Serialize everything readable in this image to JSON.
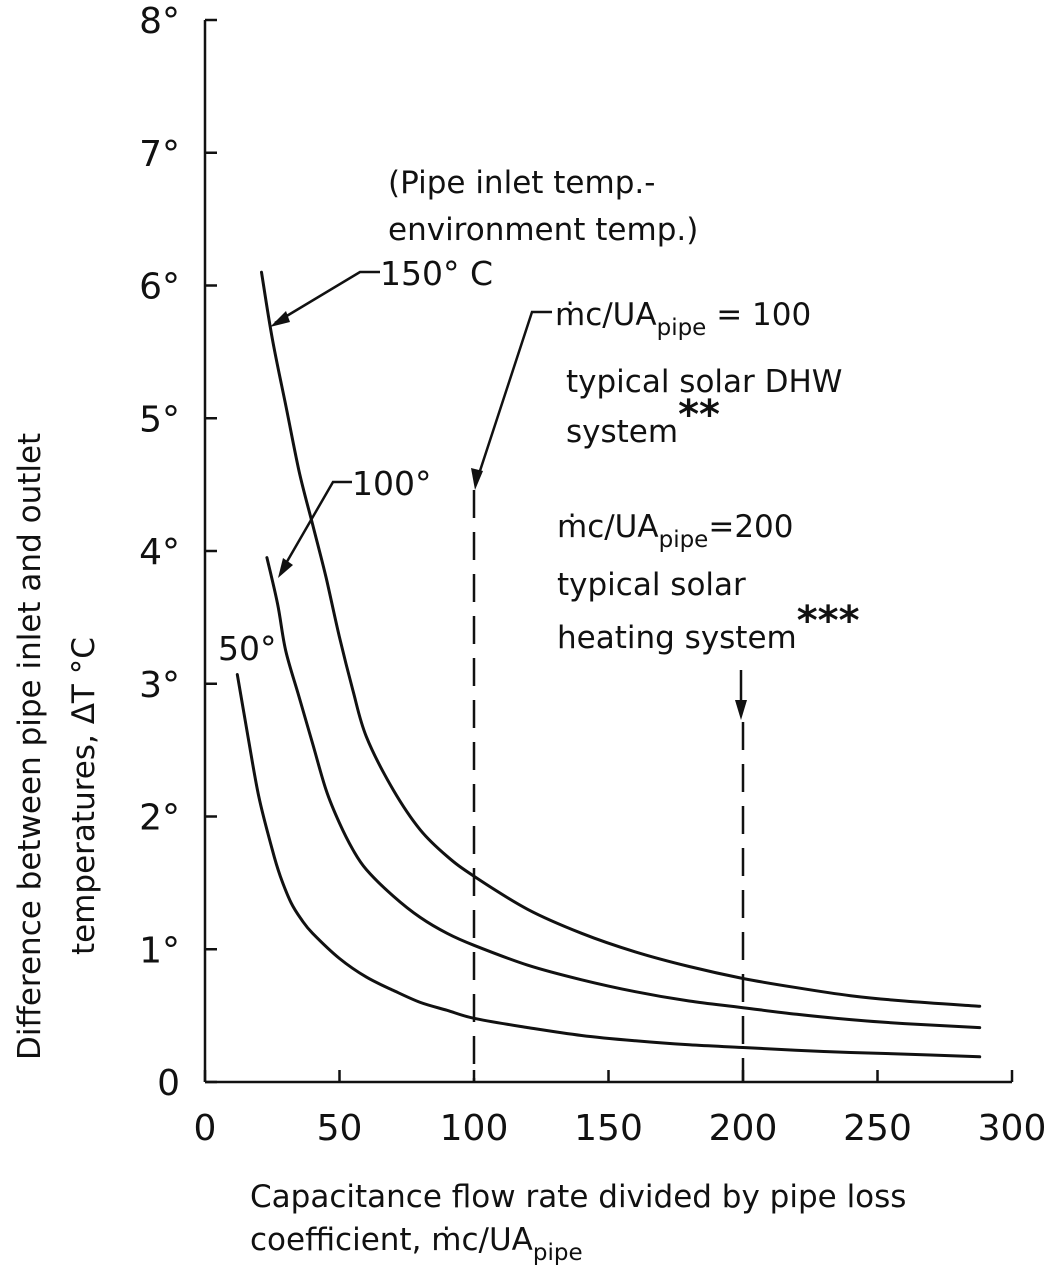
{
  "chart_data": {
    "type": "line",
    "xlabel": {
      "line1": "Capacitance flow rate divided by pipe loss",
      "line2_main": "coefficient, ṁc/UA",
      "line2_sub": "pipe"
    },
    "ylabel": {
      "line1": "Difference between pipe inlet and outlet",
      "line2": "temperatures, ΔT °C"
    },
    "xlim": [
      0,
      300
    ],
    "ylim": [
      0,
      8
    ],
    "grid": false,
    "x_ticks": [
      {
        "value": 0,
        "label": "0"
      },
      {
        "value": 50,
        "label": "50"
      },
      {
        "value": 100,
        "label": "100"
      },
      {
        "value": 150,
        "label": "150"
      },
      {
        "value": 200,
        "label": "200"
      },
      {
        "value": 250,
        "label": "250"
      },
      {
        "value": 300,
        "label": "300"
      }
    ],
    "y_ticks": [
      {
        "value": 0,
        "label": "0"
      },
      {
        "value": 1,
        "label": "1°"
      },
      {
        "value": 2,
        "label": "2°"
      },
      {
        "value": 3,
        "label": "3°"
      },
      {
        "value": 4,
        "label": "4°"
      },
      {
        "value": 5,
        "label": "5°"
      },
      {
        "value": 6,
        "label": "6°"
      },
      {
        "value": 7,
        "label": "7°"
      },
      {
        "value": 8,
        "label": "8°"
      }
    ],
    "series": [
      {
        "name": "150° C",
        "x": [
          21,
          25,
          30,
          35,
          40,
          45,
          50,
          55,
          60,
          70,
          80,
          90,
          100,
          120,
          140,
          160,
          180,
          200,
          220,
          240,
          260,
          288
        ],
        "y": [
          6.1,
          5.6,
          5.1,
          4.6,
          4.2,
          3.8,
          3.35,
          2.95,
          2.6,
          2.2,
          1.9,
          1.7,
          1.55,
          1.3,
          1.12,
          0.98,
          0.87,
          0.78,
          0.71,
          0.65,
          0.61,
          0.57
        ]
      },
      {
        "name": "100°",
        "x": [
          23,
          27,
          30,
          35,
          40,
          45,
          50,
          55,
          60,
          70,
          80,
          90,
          100,
          120,
          140,
          160,
          180,
          200,
          220,
          240,
          260,
          288
        ],
        "y": [
          3.95,
          3.6,
          3.25,
          2.9,
          2.55,
          2.2,
          1.95,
          1.75,
          1.6,
          1.4,
          1.24,
          1.12,
          1.03,
          0.88,
          0.77,
          0.68,
          0.61,
          0.56,
          0.51,
          0.47,
          0.44,
          0.41
        ]
      },
      {
        "name": "50°",
        "x": [
          12,
          16,
          20,
          25,
          28,
          32,
          36,
          40,
          50,
          60,
          70,
          80,
          90,
          100,
          120,
          140,
          160,
          180,
          200,
          230,
          260,
          288
        ],
        "y": [
          3.07,
          2.6,
          2.15,
          1.75,
          1.55,
          1.35,
          1.22,
          1.12,
          0.93,
          0.79,
          0.69,
          0.6,
          0.54,
          0.48,
          0.41,
          0.35,
          0.31,
          0.28,
          0.26,
          0.23,
          0.21,
          0.19
        ]
      }
    ],
    "annotations": {
      "note_line1": "(Pipe inlet temp.-",
      "note_line2": "environment temp.)",
      "label_150": "150° C",
      "label_100": "100°",
      "label_50": "50°",
      "ref100_main": "ṁc/UA",
      "ref100_sub": "pipe",
      "ref100_tail": " = 100",
      "ref100_line2": "typical solar DHW",
      "ref100_line3": "system",
      "ref100_stars": "**",
      "ref200_main": "ṁc/UA",
      "ref200_sub": "pipe",
      "ref200_tail": "=200",
      "ref200_line2": "typical solar",
      "ref200_line3": "heating system",
      "ref200_stars": "***"
    },
    "reference_lines": [
      {
        "x": 100,
        "style": "dashed"
      },
      {
        "x": 200,
        "style": "dashed"
      }
    ]
  }
}
